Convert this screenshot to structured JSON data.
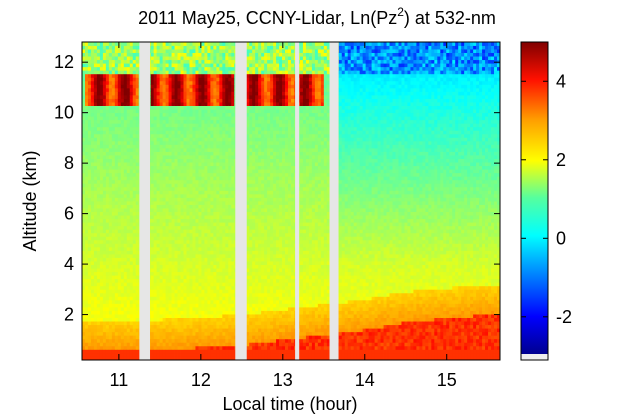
{
  "chart_data": {
    "type": "heatmap",
    "title_main": "2011 May25, CCNY-Lidar, Ln(Pz",
    "title_sup": "2",
    "title_tail": ") at 532-nm",
    "xlabel": "Local time (hour)",
    "ylabel": "Altitude (km)",
    "xlim": [
      10.55,
      15.65
    ],
    "ylim": [
      0.2,
      12.8
    ],
    "xticks": [
      11,
      12,
      13,
      14,
      15
    ],
    "xtick_labels": [
      "11",
      "12",
      "13",
      "14",
      "15"
    ],
    "yticks": [
      2,
      4,
      6,
      8,
      10,
      12
    ],
    "ytick_labels": [
      "2",
      "4",
      "6",
      "8",
      "10",
      "12"
    ],
    "colorbar": {
      "colormap": "jet",
      "clim": [
        -3.1,
        5.0
      ],
      "ticks": [
        -2,
        0,
        2,
        4
      ],
      "tick_labels": [
        "-2",
        "0",
        "2",
        "4"
      ]
    },
    "data_gaps_hours": [
      [
        11.25,
        11.38
      ],
      [
        12.42,
        12.56
      ],
      [
        13.15,
        13.2
      ],
      [
        13.57,
        13.68
      ]
    ],
    "layers": {
      "boundary_layer_top_km": {
        "times": [
          10.6,
          11.0,
          11.5,
          12.0,
          12.5,
          13.0,
          13.5,
          14.0,
          14.5,
          15.0,
          15.5
        ],
        "values": [
          0.6,
          0.6,
          0.6,
          0.7,
          0.8,
          1.0,
          1.2,
          1.4,
          1.7,
          1.85,
          2.0
        ]
      },
      "cirrus_band_km": [
        10.3,
        11.6
      ],
      "cirrus_times": [
        [
          10.6,
          11.25
        ],
        [
          11.38,
          12.42
        ],
        [
          12.56,
          13.5
        ]
      ]
    },
    "grid": false
  }
}
